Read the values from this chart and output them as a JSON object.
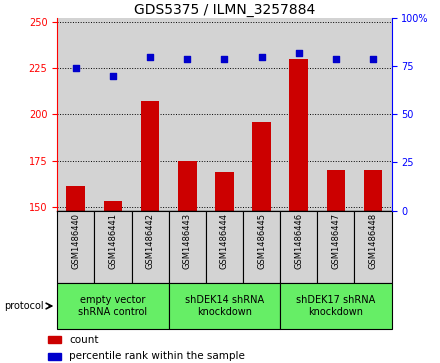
{
  "title": "GDS5375 / ILMN_3257884",
  "samples": [
    "GSM1486440",
    "GSM1486441",
    "GSM1486442",
    "GSM1486443",
    "GSM1486444",
    "GSM1486445",
    "GSM1486446",
    "GSM1486447",
    "GSM1486448"
  ],
  "counts": [
    161,
    153,
    207,
    175,
    169,
    196,
    230,
    170,
    170
  ],
  "percentiles": [
    74,
    70,
    80,
    79,
    79,
    80,
    82,
    79,
    79
  ],
  "ylim_left": [
    148,
    252
  ],
  "ylim_right": [
    0,
    100
  ],
  "yticks_left": [
    150,
    175,
    200,
    225,
    250
  ],
  "yticks_right": [
    0,
    25,
    50,
    75,
    100
  ],
  "bar_color": "#cc0000",
  "dot_color": "#0000cc",
  "groups": [
    {
      "label": "empty vector\nshRNA control",
      "start": 0,
      "end": 3
    },
    {
      "label": "shDEK14 shRNA\nknockdown",
      "start": 3,
      "end": 6
    },
    {
      "label": "shDEK17 shRNA\nknockdown",
      "start": 6,
      "end": 9
    }
  ],
  "group_color": "#66ee66",
  "legend_count_label": "count",
  "legend_percentile_label": "percentile rank within the sample",
  "protocol_label": "protocol",
  "bg_color": "#ffffff",
  "cell_bg": "#d3d3d3",
  "title_fontsize": 10,
  "tick_fontsize": 7,
  "sample_fontsize": 6,
  "group_fontsize": 7,
  "legend_fontsize": 7.5
}
